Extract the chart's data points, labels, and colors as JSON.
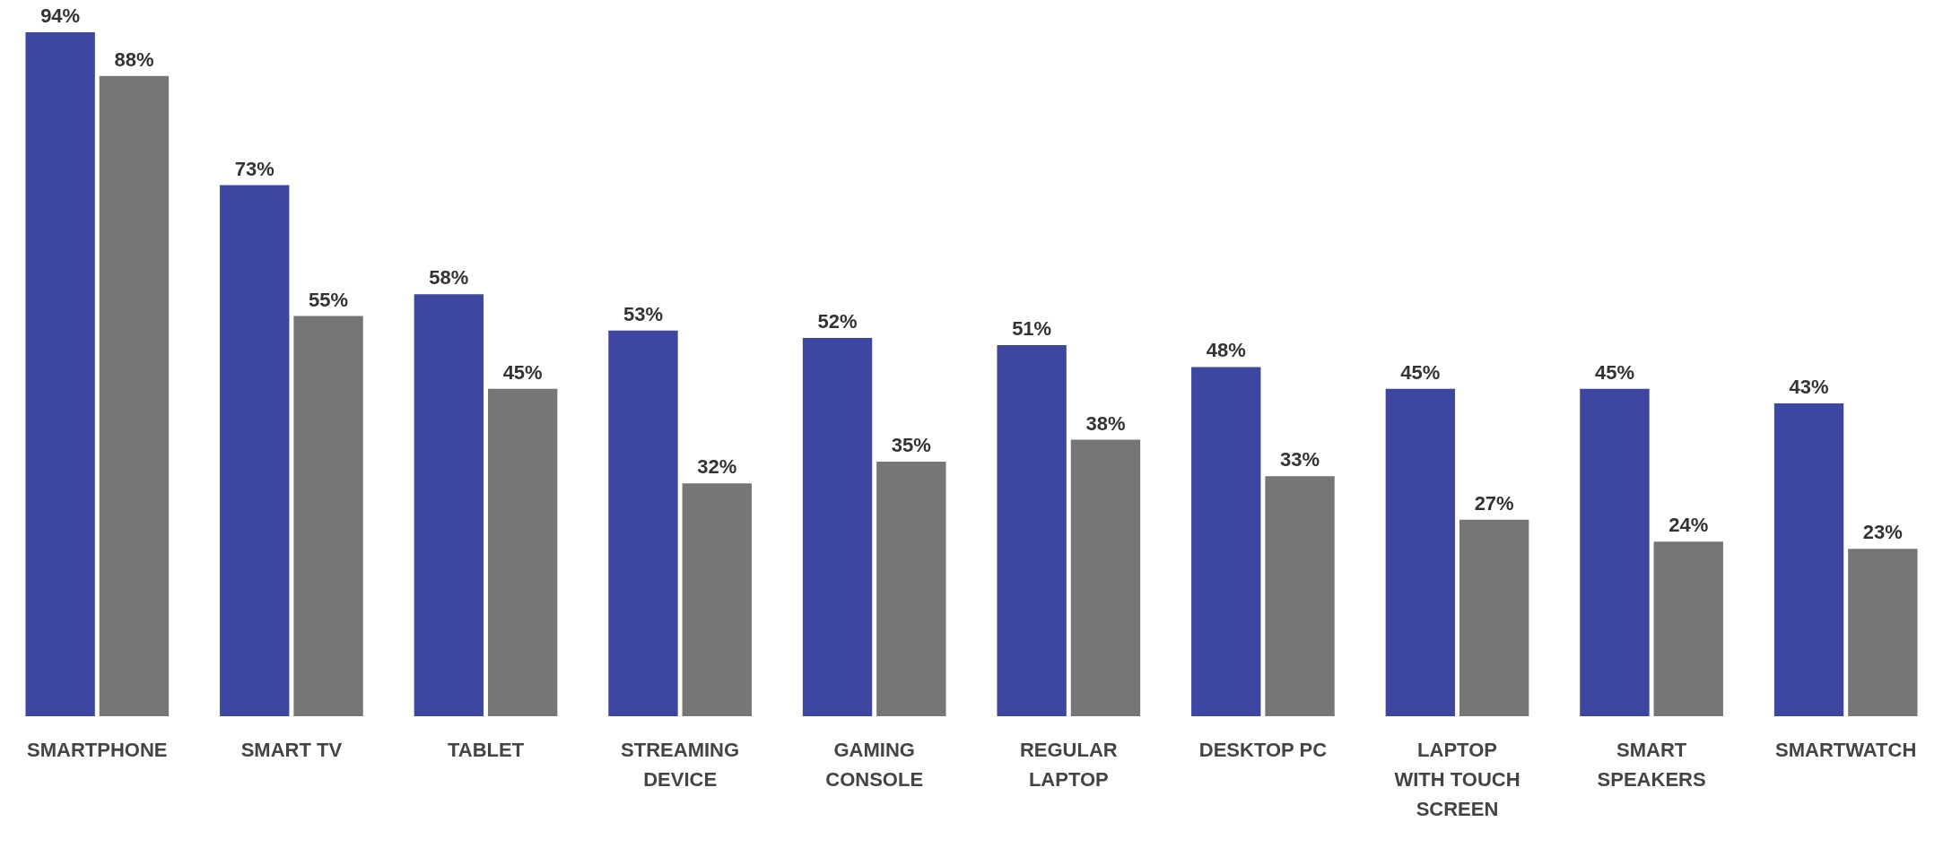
{
  "chart_data": {
    "type": "bar",
    "categories": [
      "SMARTPHONE",
      "SMART TV",
      "TABLET",
      "STREAMING DEVICE",
      "GAMING CONSOLE",
      "REGULAR LAPTOP",
      "DESKTOP PC",
      "LAPTOP WITH TOUCH SCREEN",
      "SMART SPEAKERS",
      "SMARTWATCH"
    ],
    "series": [
      {
        "color": "#3d47a0",
        "values": [
          94,
          73,
          58,
          53,
          52,
          51,
          48,
          45,
          45,
          43
        ],
        "value_labels": [
          "94%",
          "73%",
          "58%",
          "53%",
          "52%",
          "51%",
          "48%",
          "45%",
          "45%",
          "43%"
        ]
      },
      {
        "color": "#767676",
        "values": [
          88,
          55,
          45,
          32,
          35,
          38,
          33,
          27,
          24,
          23
        ],
        "value_labels": [
          "88%",
          "55%",
          "45%",
          "32%",
          "35%",
          "38%",
          "33%",
          "27%",
          "24%",
          "23%"
        ]
      }
    ],
    "grid": false,
    "legend": false
  }
}
